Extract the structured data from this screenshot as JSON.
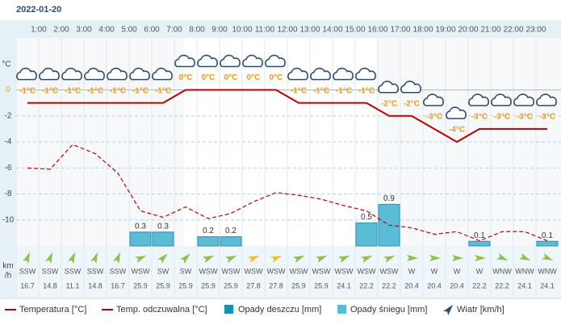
{
  "date": "2022-01-20",
  "chart_data": {
    "type": "weather",
    "categories": [
      null,
      "1:00",
      "2:00",
      "3:00",
      "4:00",
      "5:00",
      "6:00",
      "7:00",
      "8:00",
      "9:00",
      "10:00",
      "11:00",
      "12:00",
      "13:00",
      "14:00",
      "15:00",
      "16:00",
      "17:00",
      "18:00",
      "19:00",
      "20:00",
      "21:00",
      "22:00",
      "23:00"
    ],
    "y_label": "°C",
    "ylim": [
      -12,
      4
    ],
    "yticks": [
      0,
      -2,
      -4,
      -6,
      -8,
      -10
    ],
    "y2lim": [
      0,
      4.5
    ],
    "series": [
      {
        "name": "Temperatura [°C]",
        "color": "#c00000",
        "values": [
          -1,
          -1,
          -1,
          -1,
          -1,
          -1,
          -1,
          0,
          0,
          0,
          0,
          0,
          -1,
          -1,
          -1,
          -1,
          -2,
          -2,
          -3,
          -4,
          -3,
          -3,
          -3,
          -3
        ],
        "value_labels": [
          "-1°C",
          "-1°C",
          "-1°C",
          "-1°C",
          "-1°C",
          "-1°C",
          "-1°C",
          "0°C",
          "0°C",
          "0°C",
          "0°C",
          "0°C",
          "-1°C",
          "-1°C",
          "-1°C",
          "-1°C",
          "-2°C",
          "-2°C",
          "-3°C",
          "-4°C",
          "-3°C",
          "-3°C",
          "-3°C",
          "-3°C"
        ]
      },
      {
        "name": "Temp. odczuwalna [°C]",
        "color": "#c00000",
        "values": [
          -6.0,
          -6.1,
          -4.2,
          -4.9,
          -6.4,
          -9.3,
          -9.8,
          -9.0,
          -9.9,
          -9.5,
          -8.6,
          -7.9,
          -8.1,
          -8.4,
          -8.9,
          -9.3,
          -10.4,
          -10.6,
          -11.1,
          -10.9,
          -11.6,
          -10.9,
          -10.9,
          -11.6
        ]
      },
      {
        "name": "Opady deszczu [mm]",
        "color": "#1a8fb5",
        "axis": "y2",
        "values": [
          0,
          0,
          0,
          0,
          0,
          0,
          0,
          0,
          0,
          0,
          0,
          0,
          0,
          0,
          0,
          0,
          0,
          0,
          0,
          0,
          0,
          0,
          0,
          0
        ]
      },
      {
        "name": "Opady śniegu [mm]",
        "color": "#5bbcd6",
        "axis": "y2",
        "values": [
          0,
          0,
          0,
          0,
          0,
          0.3,
          0.3,
          0,
          0.2,
          0.2,
          0,
          0,
          0,
          0,
          0,
          0.5,
          0.9,
          0,
          0,
          0,
          0.1,
          0,
          0,
          0.1
        ]
      }
    ],
    "wind": {
      "name": "Wiatr [km/h]",
      "unit": [
        "km",
        "/h"
      ],
      "color": "#8bc34a",
      "directions": [
        "SSW",
        "SSW",
        "SSW",
        "SSW",
        "SSW",
        "WSW",
        "SW",
        "SW",
        "WSW",
        "WSW",
        "WSW",
        "WSW",
        "WSW",
        "WSW",
        "WSW",
        "WSW",
        "WSW",
        "W",
        "W",
        "W",
        "W",
        "WNW",
        "WNW",
        "WNW"
      ],
      "speeds": [
        16.7,
        14.8,
        11.1,
        14.8,
        16.7,
        25.9,
        25.9,
        25.9,
        25.9,
        25.9,
        27.8,
        27.8,
        25.9,
        25.9,
        24.1,
        22.2,
        22.2,
        20.4,
        20.4,
        20.4,
        22.2,
        22.2,
        24.1,
        24.1
      ]
    }
  }
}
